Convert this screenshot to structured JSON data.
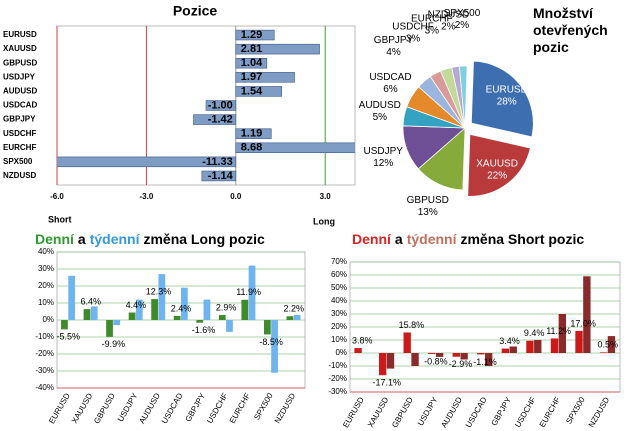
{
  "chart_data": [
    {
      "type": "hbar",
      "title": "Pozice",
      "categories": [
        "EURUSD",
        "XAUUSD",
        "GBPUSD",
        "USDJPY",
        "AUDUSD",
        "USDCAD",
        "GBPJPY",
        "USDCHF",
        "EURCHF",
        "SPX500",
        "NZDUSD"
      ],
      "values": [
        1.29,
        2.81,
        1.04,
        1.97,
        1.54,
        -1.0,
        -1.42,
        1.19,
        8.68,
        -11.33,
        -1.14
      ],
      "value_labels": [
        "1.29",
        "2.81",
        "1.04",
        "1.97",
        "1.54",
        "-1.00",
        "-1.42",
        "1.19",
        "8.68",
        "-11.33",
        "-1.14"
      ],
      "color": "#7f9cc4",
      "xlim": [
        -6,
        4
      ],
      "xticks": [
        {
          "value": -6,
          "label": "-6.0"
        },
        {
          "value": -3,
          "label": "-3.0"
        },
        {
          "value": 0,
          "label": "0.0"
        },
        {
          "value": 3,
          "label": "3.0"
        }
      ],
      "xlabel_left": "Short",
      "xlabel_right": "Long"
    },
    {
      "type": "pie",
      "title": "Množství otevřených pozic",
      "categories": [
        "EURUSD",
        "XAUUSD",
        "GBPUSD",
        "USDJPY",
        "AUDUSD",
        "USDCAD",
        "GBPJPY",
        "USDCHF",
        "EURCHF",
        "NZDUSD",
        "SPX500"
      ],
      "values": [
        28,
        22,
        13,
        12,
        5,
        6,
        4,
        3,
        3,
        2,
        2
      ],
      "value_labels": [
        "28%",
        "22%",
        "13%",
        "12%",
        "5%",
        "6%",
        "4%",
        "3%",
        "3%",
        "2%",
        "2%"
      ],
      "colors": [
        "#3d6fb0",
        "#b83a3a",
        "#86ab3a",
        "#6e4f95",
        "#34a3c2",
        "#e58a2a",
        "#9bb5df",
        "#d99a9a",
        "#c3d99a",
        "#b7a9d3",
        "#7fd0e0"
      ]
    },
    {
      "type": "groupedbar",
      "title": [
        "Denní",
        "a",
        "týdenní",
        "změna Long pozic"
      ],
      "title_colors": [
        "#2f9a2f",
        "#000000",
        "#3399dd",
        "#000000"
      ],
      "categories": [
        "EURUSD",
        "XAUUSD",
        "GBPUSD",
        "USDJPY",
        "AUDUSD",
        "USDCAD",
        "GBPJPY",
        "USDCHF",
        "EURCHF",
        "SPX500",
        "NZDUSD"
      ],
      "series": [
        {
          "color": "#3f8a2a",
          "values": [
            -5.5,
            6.4,
            -9.9,
            4.4,
            12.3,
            2.4,
            -1.6,
            2.9,
            11.9,
            -8.5,
            2.2
          ],
          "value_labels": [
            "-5.5%",
            "6.4%",
            "-9.9%",
            "4.4%",
            "12.3%",
            "2.4%",
            "-1.6%",
            "2.9%",
            "11.9%",
            "-8.5%",
            "2.2%"
          ]
        },
        {
          "color": "#6fb4ee",
          "values": [
            26,
            8,
            -3,
            12,
            27,
            19,
            12,
            -7,
            32,
            -31,
            3
          ]
        }
      ],
      "ylim": [
        -40,
        40
      ],
      "yticks": [
        {
          "value": -40,
          "label": "-40%"
        },
        {
          "value": -30,
          "label": "-30%"
        },
        {
          "value": -20,
          "label": "-20%"
        },
        {
          "value": -10,
          "label": "-10%"
        },
        {
          "value": 0,
          "label": "0%"
        },
        {
          "value": 10,
          "label": "10%"
        },
        {
          "value": 20,
          "label": "20%"
        },
        {
          "value": 30,
          "label": "30%"
        },
        {
          "value": 40,
          "label": "40%"
        }
      ]
    },
    {
      "type": "groupedbar",
      "title": [
        "Denní",
        "a",
        "týdenní",
        "změna Short pozic"
      ],
      "title_colors": [
        "#dd2222",
        "#000000",
        "#c0705a",
        "#000000"
      ],
      "categories": [
        "EURUSD",
        "XAUUSD",
        "GBPUSD",
        "USDJPY",
        "AUDUSD",
        "USDCAD",
        "GBPJPY",
        "USDCHF",
        "EURCHF",
        "SPX500",
        "NZDUSD"
      ],
      "series": [
        {
          "color": "#cc1a1a",
          "values": [
            3.8,
            -17.1,
            15.8,
            -0.8,
            -2.9,
            -1.1,
            3.4,
            9.4,
            11.2,
            17.0,
            0.5
          ],
          "value_labels": [
            "3.8%",
            "-17.1%",
            "15.8%",
            "-0.8%",
            "-2.9%",
            "-1.1%",
            "3.4%",
            "9.4%",
            "11.2%",
            "17.0%",
            "0.5%"
          ]
        },
        {
          "color": "#8b2a2a",
          "values": [
            0,
            -12,
            -10,
            -3,
            -5,
            -10,
            5,
            10,
            30,
            59,
            13
          ]
        }
      ],
      "ylim": [
        -30,
        70
      ],
      "yticks": [
        {
          "value": -30,
          "label": "-30%"
        },
        {
          "value": -20,
          "label": "-20%"
        },
        {
          "value": -10,
          "label": "-10%"
        },
        {
          "value": 0,
          "label": "0%"
        },
        {
          "value": 10,
          "label": "10%"
        },
        {
          "value": 20,
          "label": "20%"
        },
        {
          "value": 30,
          "label": "30%"
        },
        {
          "value": 40,
          "label": "40%"
        },
        {
          "value": 50,
          "label": "50%"
        },
        {
          "value": 60,
          "label": "60%"
        },
        {
          "value": 70,
          "label": "70%"
        }
      ]
    }
  ]
}
